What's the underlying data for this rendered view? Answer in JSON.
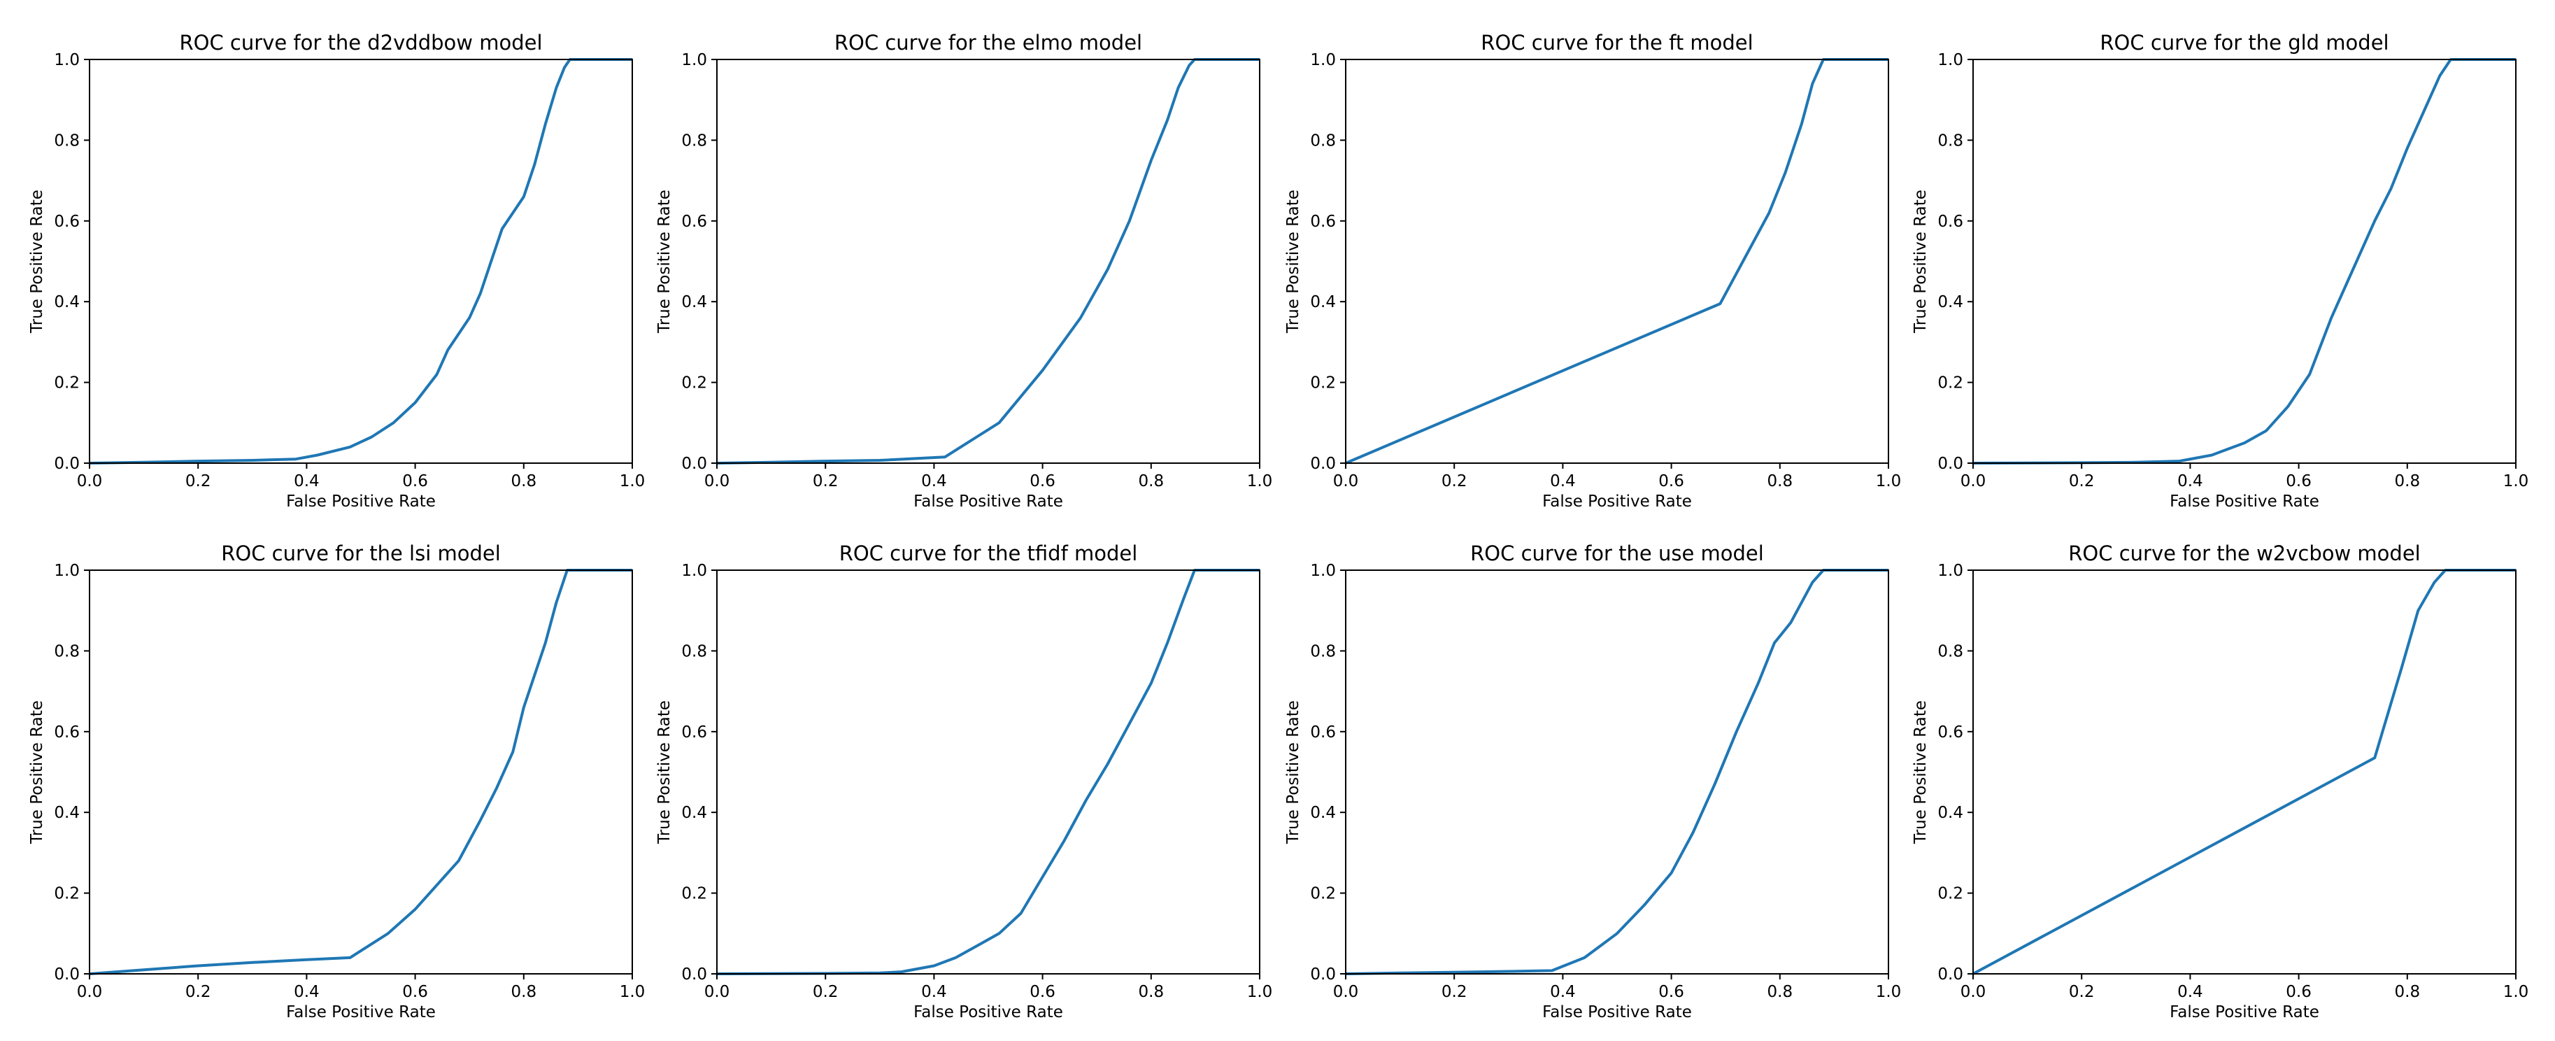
{
  "figure": {
    "background": "#ffffff",
    "line_color": "#1f77b4"
  },
  "chart_data": [
    {
      "type": "line",
      "title": "ROC curve for the d2vddbow model",
      "xlabel": "False Positive Rate",
      "ylabel": "True Positive Rate",
      "xlim": [
        0,
        1
      ],
      "ylim": [
        0,
        1
      ],
      "xticks": [
        "0.0",
        "0.2",
        "0.4",
        "0.6",
        "0.8",
        "1.0"
      ],
      "yticks": [
        "0.0",
        "0.2",
        "0.4",
        "0.6",
        "0.8",
        "1.0"
      ],
      "grid": false,
      "x": [
        0,
        0.1,
        0.2,
        0.3,
        0.38,
        0.42,
        0.48,
        0.52,
        0.56,
        0.6,
        0.64,
        0.66,
        0.7,
        0.72,
        0.74,
        0.76,
        0.78,
        0.8,
        0.82,
        0.84,
        0.86,
        0.875,
        0.885,
        0.9,
        1.0
      ],
      "y": [
        0,
        0.002,
        0.005,
        0.007,
        0.01,
        0.02,
        0.04,
        0.065,
        0.1,
        0.15,
        0.22,
        0.28,
        0.36,
        0.42,
        0.5,
        0.58,
        0.62,
        0.66,
        0.74,
        0.84,
        0.93,
        0.98,
        1.0,
        1.0,
        1.0
      ]
    },
    {
      "type": "line",
      "title": "ROC curve for the elmo model",
      "xlabel": "False Positive Rate",
      "ylabel": "True Positive Rate",
      "xlim": [
        0,
        1
      ],
      "ylim": [
        0,
        1
      ],
      "xticks": [
        "0.0",
        "0.2",
        "0.4",
        "0.6",
        "0.8",
        "1.0"
      ],
      "yticks": [
        "0.0",
        "0.2",
        "0.4",
        "0.6",
        "0.8",
        "1.0"
      ],
      "grid": false,
      "x": [
        0,
        0.1,
        0.2,
        0.3,
        0.42,
        0.52,
        0.6,
        0.67,
        0.72,
        0.76,
        0.8,
        0.83,
        0.85,
        0.87,
        0.88,
        0.9,
        1.0
      ],
      "y": [
        0,
        0.002,
        0.005,
        0.007,
        0.015,
        0.1,
        0.23,
        0.36,
        0.48,
        0.6,
        0.75,
        0.85,
        0.93,
        0.985,
        1.0,
        1.0,
        1.0
      ]
    },
    {
      "type": "line",
      "title": "ROC curve for the ft model",
      "xlabel": "False Positive Rate",
      "ylabel": "True Positive Rate",
      "xlim": [
        0,
        1
      ],
      "ylim": [
        0,
        1
      ],
      "xticks": [
        "0.0",
        "0.2",
        "0.4",
        "0.6",
        "0.8",
        "1.0"
      ],
      "yticks": [
        "0.0",
        "0.2",
        "0.4",
        "0.6",
        "0.8",
        "1.0"
      ],
      "grid": false,
      "x": [
        0,
        0.69,
        0.74,
        0.78,
        0.81,
        0.84,
        0.86,
        0.88,
        0.9,
        1.0
      ],
      "y": [
        0,
        0.395,
        0.52,
        0.62,
        0.72,
        0.84,
        0.94,
        1.0,
        1.0,
        1.0
      ]
    },
    {
      "type": "line",
      "title": "ROC curve for the gld model",
      "xlabel": "False Positive Rate",
      "ylabel": "True Positive Rate",
      "xlim": [
        0,
        1
      ],
      "ylim": [
        0,
        1
      ],
      "xticks": [
        "0.0",
        "0.2",
        "0.4",
        "0.6",
        "0.8",
        "1.0"
      ],
      "yticks": [
        "0.0",
        "0.2",
        "0.4",
        "0.6",
        "0.8",
        "1.0"
      ],
      "grid": false,
      "x": [
        0,
        0.2,
        0.3,
        0.38,
        0.44,
        0.5,
        0.54,
        0.58,
        0.62,
        0.66,
        0.7,
        0.74,
        0.77,
        0.8,
        0.83,
        0.86,
        0.88,
        0.9,
        1.0
      ],
      "y": [
        0,
        0.001,
        0.002,
        0.005,
        0.02,
        0.05,
        0.08,
        0.14,
        0.22,
        0.36,
        0.48,
        0.6,
        0.68,
        0.78,
        0.87,
        0.96,
        1.0,
        1.0,
        1.0
      ]
    },
    {
      "type": "line",
      "title": "ROC curve for the lsi model",
      "xlabel": "False Positive Rate",
      "ylabel": "True Positive Rate",
      "xlim": [
        0,
        1
      ],
      "ylim": [
        0,
        1
      ],
      "xticks": [
        "0.0",
        "0.2",
        "0.4",
        "0.6",
        "0.8",
        "1.0"
      ],
      "yticks": [
        "0.0",
        "0.2",
        "0.4",
        "0.6",
        "0.8",
        "1.0"
      ],
      "grid": false,
      "x": [
        0,
        0.1,
        0.2,
        0.3,
        0.4,
        0.48,
        0.55,
        0.6,
        0.64,
        0.68,
        0.72,
        0.75,
        0.78,
        0.8,
        0.82,
        0.84,
        0.86,
        0.88,
        0.89,
        0.9,
        1.0
      ],
      "y": [
        0,
        0.01,
        0.02,
        0.028,
        0.035,
        0.04,
        0.1,
        0.16,
        0.22,
        0.28,
        0.38,
        0.46,
        0.55,
        0.66,
        0.74,
        0.82,
        0.92,
        1.0,
        1.0,
        1.0,
        1.0
      ]
    },
    {
      "type": "line",
      "title": "ROC curve for the tfidf model",
      "xlabel": "False Positive Rate",
      "ylabel": "True Positive Rate",
      "xlim": [
        0,
        1
      ],
      "ylim": [
        0,
        1
      ],
      "xticks": [
        "0.0",
        "0.2",
        "0.4",
        "0.6",
        "0.8",
        "1.0"
      ],
      "yticks": [
        "0.0",
        "0.2",
        "0.4",
        "0.6",
        "0.8",
        "1.0"
      ],
      "grid": false,
      "x": [
        0,
        0.2,
        0.3,
        0.34,
        0.4,
        0.44,
        0.48,
        0.52,
        0.56,
        0.6,
        0.64,
        0.68,
        0.72,
        0.76,
        0.8,
        0.83,
        0.86,
        0.88,
        0.9,
        1.0
      ],
      "y": [
        0,
        0.001,
        0.002,
        0.005,
        0.02,
        0.04,
        0.07,
        0.1,
        0.15,
        0.24,
        0.33,
        0.43,
        0.52,
        0.62,
        0.72,
        0.82,
        0.93,
        1.0,
        1.0,
        1.0
      ]
    },
    {
      "type": "line",
      "title": "ROC curve for the use model",
      "xlabel": "False Positive Rate",
      "ylabel": "True Positive Rate",
      "xlim": [
        0,
        1
      ],
      "ylim": [
        0,
        1
      ],
      "xticks": [
        "0.0",
        "0.2",
        "0.4",
        "0.6",
        "0.8",
        "1.0"
      ],
      "yticks": [
        "0.0",
        "0.2",
        "0.4",
        "0.6",
        "0.8",
        "1.0"
      ],
      "grid": false,
      "x": [
        0,
        0.1,
        0.2,
        0.3,
        0.38,
        0.44,
        0.5,
        0.55,
        0.6,
        0.64,
        0.68,
        0.72,
        0.76,
        0.79,
        0.82,
        0.84,
        0.86,
        0.88,
        0.9,
        1.0
      ],
      "y": [
        0,
        0.002,
        0.004,
        0.006,
        0.008,
        0.04,
        0.1,
        0.17,
        0.25,
        0.35,
        0.47,
        0.6,
        0.72,
        0.82,
        0.87,
        0.92,
        0.97,
        1.0,
        1.0,
        1.0
      ]
    },
    {
      "type": "line",
      "title": "ROC curve for the w2vcbow model",
      "xlabel": "False Positive Rate",
      "ylabel": "True Positive Rate",
      "xlim": [
        0,
        1
      ],
      "ylim": [
        0,
        1
      ],
      "xticks": [
        "0.0",
        "0.2",
        "0.4",
        "0.6",
        "0.8",
        "1.0"
      ],
      "yticks": [
        "0.0",
        "0.2",
        "0.4",
        "0.6",
        "0.8",
        "1.0"
      ],
      "grid": false,
      "x": [
        0,
        0.74,
        0.79,
        0.82,
        0.85,
        0.87,
        0.88,
        0.9,
        1.0
      ],
      "y": [
        0,
        0.535,
        0.76,
        0.9,
        0.97,
        1.0,
        1.0,
        1.0,
        1.0
      ]
    }
  ]
}
